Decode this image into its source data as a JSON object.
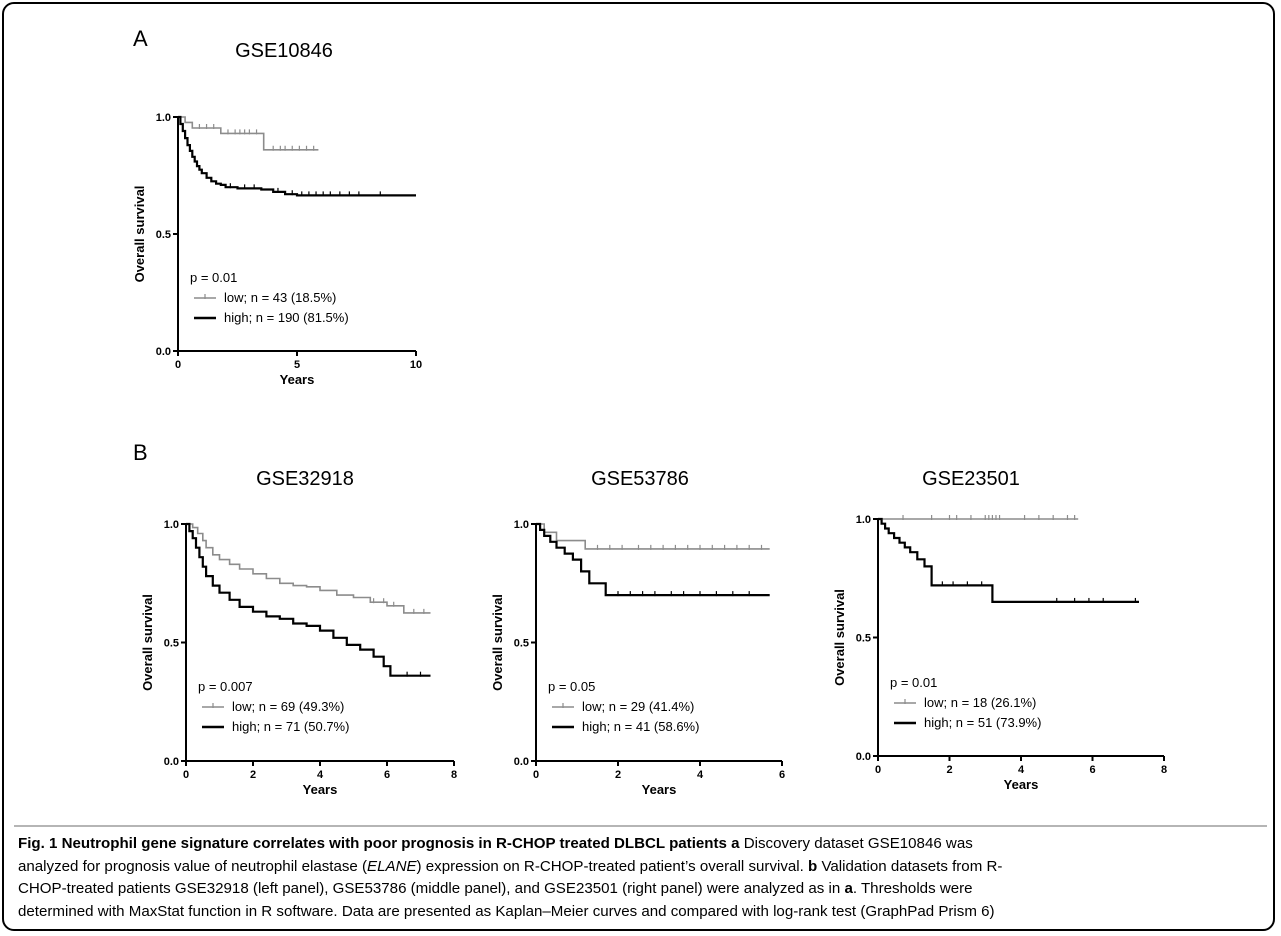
{
  "figure": {
    "panel_a_letter": "A",
    "panel_b_letter": "B"
  },
  "caption": {
    "line1_bold": "Fig. 1 Neutrophil gene signature correlates with poor prognosis in R-CHOP treated DLBCL patients",
    "line1_bold_a": "a",
    "line1_rest": " Discovery dataset GSE10846 was",
    "line2_pre": "analyzed for prognosis value of neutrophil elastase (",
    "line2_italic": "ELANE",
    "line2_post": ") expression on R-CHOP-treated patient’s overall survival. ",
    "line2_bold_b": "b",
    "line2_end": " Validation datasets from R-",
    "line3_pre": "CHOP-treated patients GSE32918 (left panel), GSE53786 (middle panel), and GSE23501 (right panel) were analyzed as in ",
    "line3_bold_a": "a",
    "line3_end": ". Thresholds were",
    "line4": "determined with MaxStat function in R software. Data are presented as Kaplan–Meier curves and compared with log-rank test (GraphPad Prism 6)"
  },
  "chart_data": [
    {
      "type": "line",
      "title": "GSE10846",
      "xlabel": "Years",
      "ylabel": "Overall survival",
      "xlim": [
        0,
        10
      ],
      "ylim": [
        0,
        1
      ],
      "xticks": [
        "0",
        "5",
        "10"
      ],
      "yticks": [
        "0.0",
        "0.5",
        "1.0"
      ],
      "pvalue": "p = 0.01",
      "colors": {
        "low": "#8c8c8c",
        "high": "#000000"
      },
      "series": [
        {
          "name": "low; n = 43 (18.5%)",
          "x": [
            0,
            0.3,
            0.6,
            1.8,
            3.6,
            5.9
          ],
          "y": [
            1,
            0.977,
            0.953,
            0.93,
            0.86,
            0.86
          ],
          "censor_x": [
            0.9,
            1.2,
            1.5,
            2.1,
            2.4,
            2.6,
            2.8,
            3.0,
            3.3,
            4.0,
            4.3,
            4.5,
            4.8,
            5.1,
            5.4,
            5.7
          ],
          "censor_y": [
            0.953,
            0.953,
            0.953,
            0.93,
            0.93,
            0.93,
            0.93,
            0.93,
            0.93,
            0.86,
            0.86,
            0.86,
            0.86,
            0.86,
            0.86,
            0.86
          ]
        },
        {
          "name": "high; n = 190 (81.5%)",
          "x": [
            0,
            0.1,
            0.2,
            0.3,
            0.4,
            0.5,
            0.6,
            0.7,
            0.8,
            0.9,
            1.0,
            1.2,
            1.4,
            1.6,
            1.8,
            2.0,
            2.5,
            3.0,
            3.5,
            4.0,
            4.5,
            5.0,
            10.0
          ],
          "y": [
            1,
            0.97,
            0.94,
            0.91,
            0.88,
            0.855,
            0.83,
            0.81,
            0.79,
            0.775,
            0.76,
            0.74,
            0.725,
            0.715,
            0.71,
            0.7,
            0.695,
            0.695,
            0.69,
            0.68,
            0.67,
            0.665,
            0.665
          ],
          "censor_x": [
            2.2,
            2.8,
            3.2,
            4.2,
            4.8,
            5.2,
            5.5,
            5.8,
            6.1,
            6.4,
            6.8,
            7.2,
            7.6,
            8.5
          ],
          "censor_y": [
            0.7,
            0.695,
            0.695,
            0.68,
            0.67,
            0.665,
            0.665,
            0.665,
            0.665,
            0.665,
            0.665,
            0.665,
            0.665,
            0.665
          ]
        }
      ]
    },
    {
      "type": "line",
      "title": "GSE32918",
      "xlabel": "Years",
      "ylabel": "Overall survival",
      "xlim": [
        0,
        8
      ],
      "ylim": [
        0,
        1
      ],
      "xticks": [
        "0",
        "2",
        "4",
        "6",
        "8"
      ],
      "yticks": [
        "0.0",
        "0.5",
        "1.0"
      ],
      "pvalue": "p = 0.007",
      "colors": {
        "low": "#8c8c8c",
        "high": "#000000"
      },
      "series": [
        {
          "name": "low; n = 69 (49.3%)",
          "x": [
            0,
            0.2,
            0.35,
            0.5,
            0.6,
            0.8,
            1.0,
            1.3,
            1.6,
            2.0,
            2.4,
            2.8,
            3.2,
            3.6,
            4.0,
            4.5,
            5.0,
            5.5,
            6.0,
            6.5,
            7.3
          ],
          "y": [
            1,
            0.985,
            0.96,
            0.93,
            0.9,
            0.87,
            0.85,
            0.83,
            0.81,
            0.79,
            0.77,
            0.75,
            0.74,
            0.735,
            0.72,
            0.7,
            0.69,
            0.67,
            0.655,
            0.625,
            0.625
          ],
          "censor_x": [
            5.6,
            5.9,
            6.2,
            6.8,
            7.1
          ],
          "censor_y": [
            0.67,
            0.67,
            0.655,
            0.625,
            0.625
          ]
        },
        {
          "name": "high; n = 71 (50.7%)",
          "x": [
            0,
            0.1,
            0.2,
            0.3,
            0.4,
            0.5,
            0.6,
            0.8,
            1.0,
            1.3,
            1.6,
            2.0,
            2.4,
            2.8,
            3.2,
            3.6,
            4.0,
            4.4,
            4.8,
            5.2,
            5.6,
            5.9,
            6.1,
            7.3
          ],
          "y": [
            1,
            0.97,
            0.94,
            0.9,
            0.86,
            0.82,
            0.78,
            0.74,
            0.71,
            0.68,
            0.65,
            0.63,
            0.61,
            0.6,
            0.58,
            0.57,
            0.55,
            0.52,
            0.49,
            0.47,
            0.44,
            0.4,
            0.36,
            0.36
          ],
          "censor_x": [
            6.6,
            7.0
          ],
          "censor_y": [
            0.36,
            0.36
          ]
        }
      ]
    },
    {
      "type": "line",
      "title": "GSE53786",
      "xlabel": "Years",
      "ylabel": "Overall survival",
      "xlim": [
        0,
        6
      ],
      "ylim": [
        0,
        1
      ],
      "xticks": [
        "0",
        "2",
        "4",
        "6"
      ],
      "yticks": [
        "0.0",
        "0.5",
        "1.0"
      ],
      "pvalue": "p = 0.05",
      "colors": {
        "low": "#8c8c8c",
        "high": "#000000"
      },
      "series": [
        {
          "name": "low; n = 29 (41.4%)",
          "x": [
            0,
            0.2,
            0.5,
            1.2,
            5.7
          ],
          "y": [
            1,
            0.965,
            0.93,
            0.895,
            0.895
          ],
          "censor_x": [
            1.5,
            1.8,
            2.1,
            2.5,
            2.8,
            3.1,
            3.4,
            3.7,
            4.0,
            4.3,
            4.6,
            4.9,
            5.2,
            5.5
          ],
          "censor_y": [
            0.895,
            0.895,
            0.895,
            0.895,
            0.895,
            0.895,
            0.895,
            0.895,
            0.895,
            0.895,
            0.895,
            0.895,
            0.895,
            0.895
          ]
        },
        {
          "name": "high; n = 41 (58.6%)",
          "x": [
            0,
            0.1,
            0.2,
            0.35,
            0.5,
            0.7,
            0.9,
            1.1,
            1.3,
            1.7,
            5.7
          ],
          "y": [
            1,
            0.975,
            0.95,
            0.925,
            0.9,
            0.875,
            0.85,
            0.8,
            0.75,
            0.7,
            0.7
          ],
          "censor_x": [
            2.0,
            2.3,
            2.6,
            2.9,
            3.3,
            3.6,
            4.0,
            4.4,
            4.8,
            5.2
          ],
          "censor_y": [
            0.7,
            0.7,
            0.7,
            0.7,
            0.7,
            0.7,
            0.7,
            0.7,
            0.7,
            0.7
          ]
        }
      ]
    },
    {
      "type": "line",
      "title": "GSE23501",
      "xlabel": "Years",
      "ylabel": "Overall survival",
      "xlim": [
        0,
        8
      ],
      "ylim": [
        0,
        1
      ],
      "xticks": [
        "0",
        "2",
        "4",
        "6",
        "8"
      ],
      "yticks": [
        "0.0",
        "0.5",
        "1.0"
      ],
      "pvalue": "p = 0.01",
      "colors": {
        "low": "#8c8c8c",
        "high": "#000000"
      },
      "series": [
        {
          "name": "low; n = 18 (26.1%)",
          "x": [
            0,
            5.6
          ],
          "y": [
            1,
            1
          ],
          "censor_x": [
            0.7,
            1.5,
            2.0,
            2.2,
            2.6,
            3.0,
            3.1,
            3.2,
            3.3,
            3.4,
            4.1,
            4.5,
            4.9,
            5.3,
            5.5
          ],
          "censor_y": [
            1,
            1,
            1,
            1,
            1,
            1,
            1,
            1,
            1,
            1,
            1,
            1,
            1,
            1,
            1
          ]
        },
        {
          "name": "high; n = 51 (73.9%)",
          "x": [
            0,
            0.1,
            0.2,
            0.3,
            0.45,
            0.6,
            0.75,
            0.9,
            1.1,
            1.3,
            1.5,
            3.2,
            7.3
          ],
          "y": [
            1,
            0.98,
            0.96,
            0.94,
            0.92,
            0.9,
            0.88,
            0.86,
            0.83,
            0.8,
            0.72,
            0.65,
            0.65
          ],
          "censor_x": [
            1.8,
            2.1,
            2.5,
            2.9,
            5.0,
            5.5,
            5.9,
            6.3,
            7.2
          ],
          "censor_y": [
            0.72,
            0.72,
            0.72,
            0.72,
            0.65,
            0.65,
            0.65,
            0.65,
            0.65
          ]
        }
      ]
    }
  ]
}
